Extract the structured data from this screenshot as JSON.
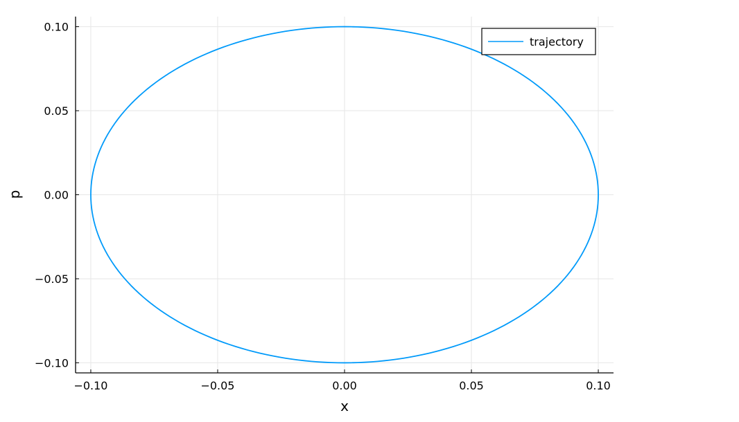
{
  "chart_data": {
    "type": "line",
    "title": "",
    "xlabel": "x",
    "ylabel": "p",
    "xlim": [
      -0.106,
      0.106
    ],
    "ylim": [
      -0.106,
      0.106
    ],
    "xticks": [
      -0.1,
      -0.05,
      0.0,
      0.05,
      0.1
    ],
    "yticks": [
      -0.1,
      -0.05,
      0.0,
      0.05,
      0.1
    ],
    "xtick_labels": [
      "−0.10",
      "−0.05",
      "0.00",
      "0.05",
      "0.10"
    ],
    "ytick_labels": [
      "−0.10",
      "−0.05",
      "0.00",
      "0.05",
      "0.10"
    ],
    "grid": true,
    "legend_position": "top-right",
    "series": [
      {
        "name": "trajectory",
        "color": "#009AFA",
        "shape": "ellipse",
        "center": [
          0.0,
          0.0
        ],
        "x_amplitude": 0.1,
        "p_amplitude": 0.1,
        "x": [
          0.1,
          0.0866,
          0.05,
          0.0,
          -0.05,
          -0.0866,
          -0.1,
          -0.0866,
          -0.05,
          0.0,
          0.05,
          0.0866,
          0.1
        ],
        "y": [
          0.0,
          0.05,
          0.0866,
          0.1,
          0.0866,
          0.05,
          0.0,
          -0.05,
          -0.0866,
          -0.1,
          -0.0866,
          -0.05,
          0.0
        ]
      }
    ]
  }
}
